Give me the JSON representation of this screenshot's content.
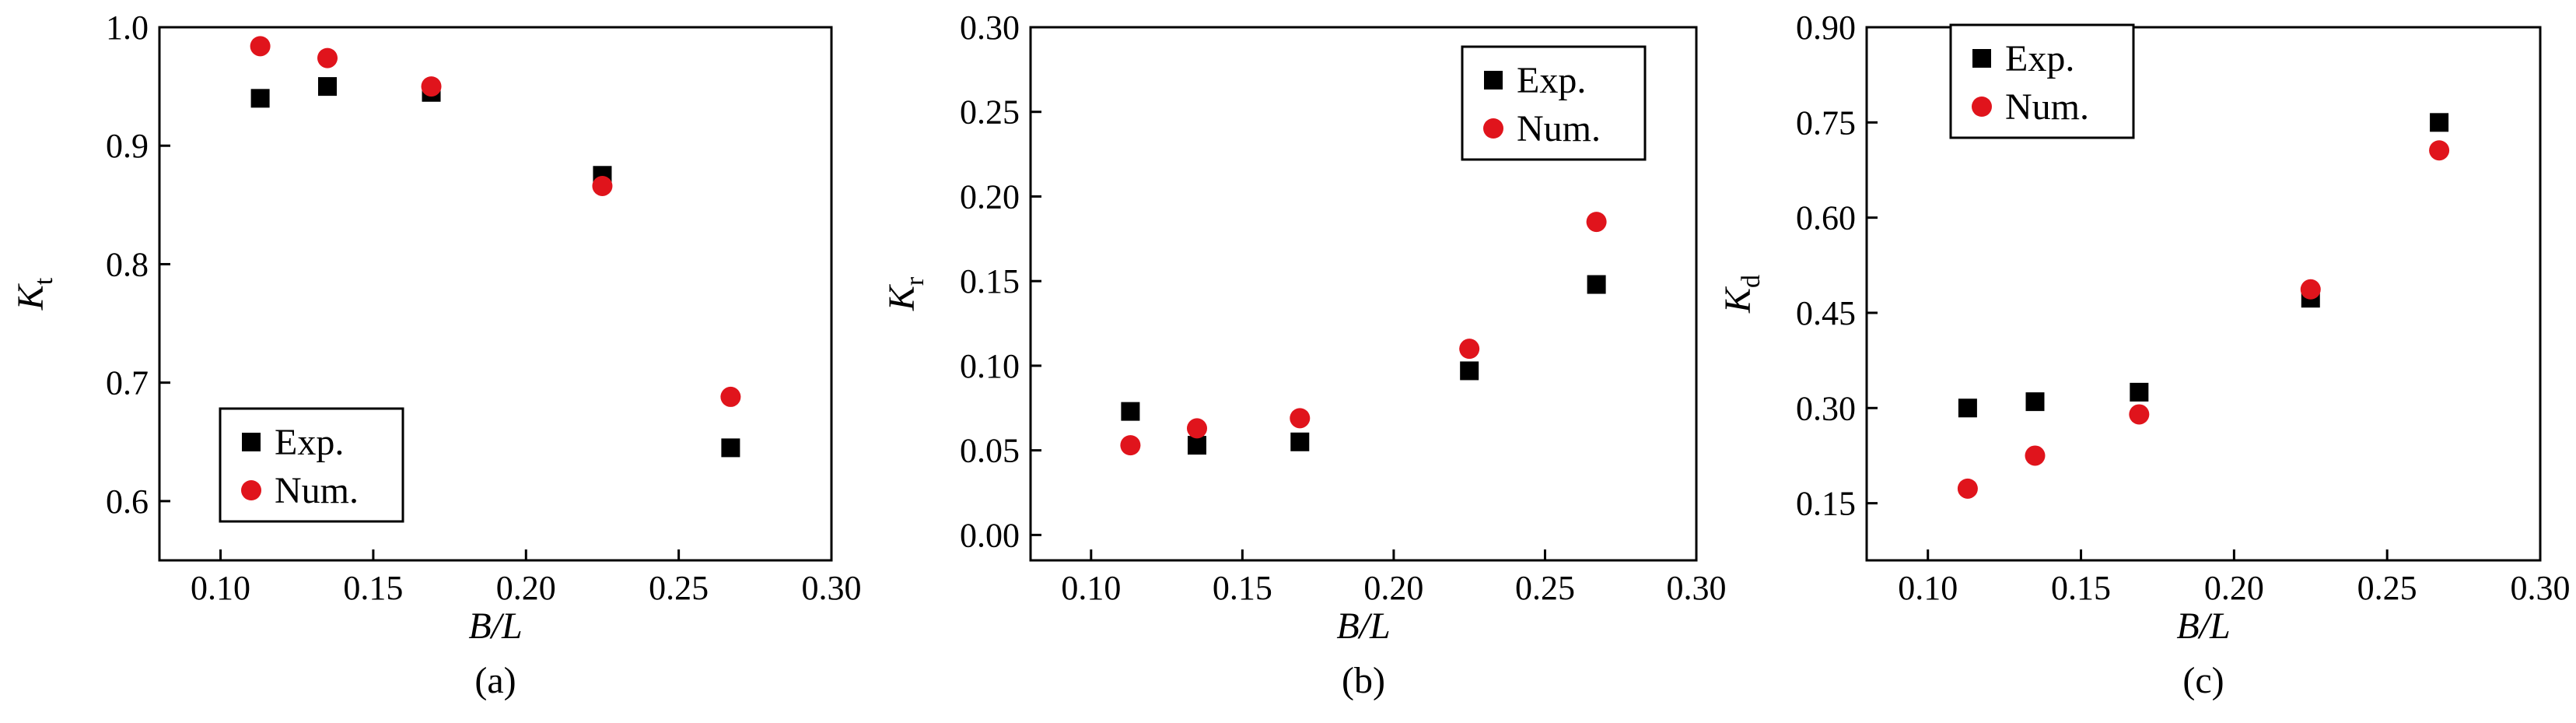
{
  "chart_data": [
    {
      "type": "scatter",
      "panel_label": "(a)",
      "xlabel": "B/L",
      "ylabel": "K",
      "ylabel_sub": "t",
      "xlim": [
        0.08,
        0.3
      ],
      "ylim": [
        0.55,
        1.0
      ],
      "xticks": [
        0.1,
        0.15,
        0.2,
        0.25,
        0.3
      ],
      "xtick_labels": [
        "0.10",
        "0.15",
        "0.20",
        "0.25",
        "0.30"
      ],
      "yticks": [
        0.6,
        0.7,
        0.8,
        0.9,
        1.0
      ],
      "ytick_labels": [
        "0.6",
        "0.7",
        "0.8",
        "0.9",
        "1.0"
      ],
      "legend_position": "bottom-left",
      "series": [
        {
          "name": "Exp.",
          "marker": "square",
          "color": "#000000",
          "x": [
            0.113,
            0.135,
            0.169,
            0.225,
            0.267
          ],
          "y": [
            0.94,
            0.95,
            0.945,
            0.875,
            0.645
          ]
        },
        {
          "name": "Num.",
          "marker": "circle",
          "color": "#e0141c",
          "x": [
            0.113,
            0.135,
            0.169,
            0.225,
            0.267
          ],
          "y": [
            0.984,
            0.974,
            0.95,
            0.866,
            0.688
          ]
        }
      ]
    },
    {
      "type": "scatter",
      "panel_label": "(b)",
      "xlabel": "B/L",
      "ylabel": "K",
      "ylabel_sub": "r",
      "xlim": [
        0.08,
        0.3
      ],
      "ylim": [
        -0.015,
        0.3
      ],
      "xticks": [
        0.1,
        0.15,
        0.2,
        0.25,
        0.3
      ],
      "xtick_labels": [
        "0.10",
        "0.15",
        "0.20",
        "0.25",
        "0.30"
      ],
      "yticks": [
        0.0,
        0.05,
        0.1,
        0.15,
        0.2,
        0.25,
        0.3
      ],
      "ytick_labels": [
        "0.00",
        "0.05",
        "0.10",
        "0.15",
        "0.20",
        "0.25",
        "0.30"
      ],
      "legend_position": "top-right",
      "series": [
        {
          "name": "Exp.",
          "marker": "square",
          "color": "#000000",
          "x": [
            0.113,
            0.135,
            0.169,
            0.225,
            0.267
          ],
          "y": [
            0.073,
            0.053,
            0.055,
            0.097,
            0.148
          ]
        },
        {
          "name": "Num.",
          "marker": "circle",
          "color": "#e0141c",
          "x": [
            0.113,
            0.135,
            0.169,
            0.225,
            0.267
          ],
          "y": [
            0.053,
            0.063,
            0.069,
            0.11,
            0.185
          ]
        }
      ]
    },
    {
      "type": "scatter",
      "panel_label": "(c)",
      "xlabel": "B/L",
      "ylabel": "K",
      "ylabel_sub": "d",
      "xlim": [
        0.08,
        0.3
      ],
      "ylim": [
        0.06,
        0.9
      ],
      "xticks": [
        0.1,
        0.15,
        0.2,
        0.25,
        0.3
      ],
      "xtick_labels": [
        "0.10",
        "0.15",
        "0.20",
        "0.25",
        "0.30"
      ],
      "yticks": [
        0.15,
        0.3,
        0.45,
        0.6,
        0.75,
        0.9
      ],
      "ytick_labels": [
        "0.15",
        "0.30",
        "0.45",
        "0.60",
        "0.75",
        "0.90"
      ],
      "legend_position": "top-left",
      "series": [
        {
          "name": "Exp.",
          "marker": "square",
          "color": "#000000",
          "x": [
            0.113,
            0.135,
            0.169,
            0.225,
            0.267
          ],
          "y": [
            0.3,
            0.31,
            0.325,
            0.473,
            0.75
          ]
        },
        {
          "name": "Num.",
          "marker": "circle",
          "color": "#e0141c",
          "x": [
            0.113,
            0.135,
            0.169,
            0.225,
            0.267
          ],
          "y": [
            0.173,
            0.225,
            0.29,
            0.487,
            0.706
          ]
        }
      ]
    }
  ]
}
